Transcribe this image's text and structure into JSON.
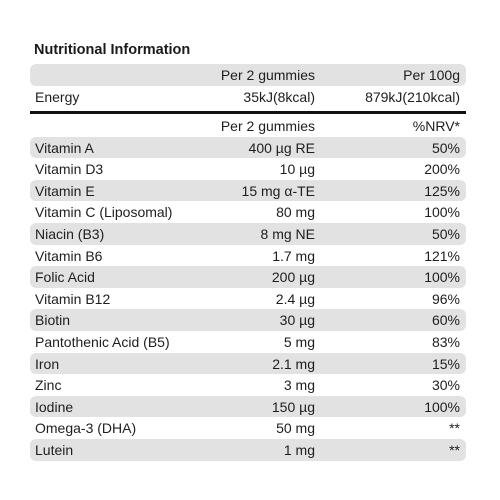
{
  "title": "Nutritional Information",
  "energy_table": {
    "header": [
      "Per 2 gummies",
      "Per 100g"
    ],
    "rows": [
      [
        "Energy",
        "35kJ(8kcal)",
        "879kJ(210kcal)"
      ]
    ]
  },
  "nutrient_table": {
    "header": [
      "Per 2 gummies",
      "%NRV*"
    ],
    "rows": [
      [
        "Vitamin A",
        "400 µg RE",
        "50%"
      ],
      [
        "Vitamin D3",
        "10 µg",
        "200%"
      ],
      [
        "Vitamin E",
        "15 mg α-TE",
        "125%"
      ],
      [
        "Vitamin C (Liposomal)",
        "80 mg",
        "100%"
      ],
      [
        "Niacin (B3)",
        "8 mg NE",
        "50%"
      ],
      [
        "Vitamin B6",
        "1.7 mg",
        "121%"
      ],
      [
        "Folic Acid",
        "200 µg",
        "100%"
      ],
      [
        "Vitamin B12",
        "2.4 µg",
        "96%"
      ],
      [
        "Biotin",
        "30 µg",
        "60%"
      ],
      [
        "Pantothenic Acid (B5)",
        "5 mg",
        "83%"
      ],
      [
        "Iron",
        "2.1 mg",
        "15%"
      ],
      [
        "Zinc",
        "3 mg",
        "30%"
      ],
      [
        "Iodine",
        "150 µg",
        "100%"
      ],
      [
        "Omega-3 (DHA)",
        "50 mg",
        "**"
      ],
      [
        "Lutein",
        "1 mg",
        "**"
      ]
    ]
  }
}
